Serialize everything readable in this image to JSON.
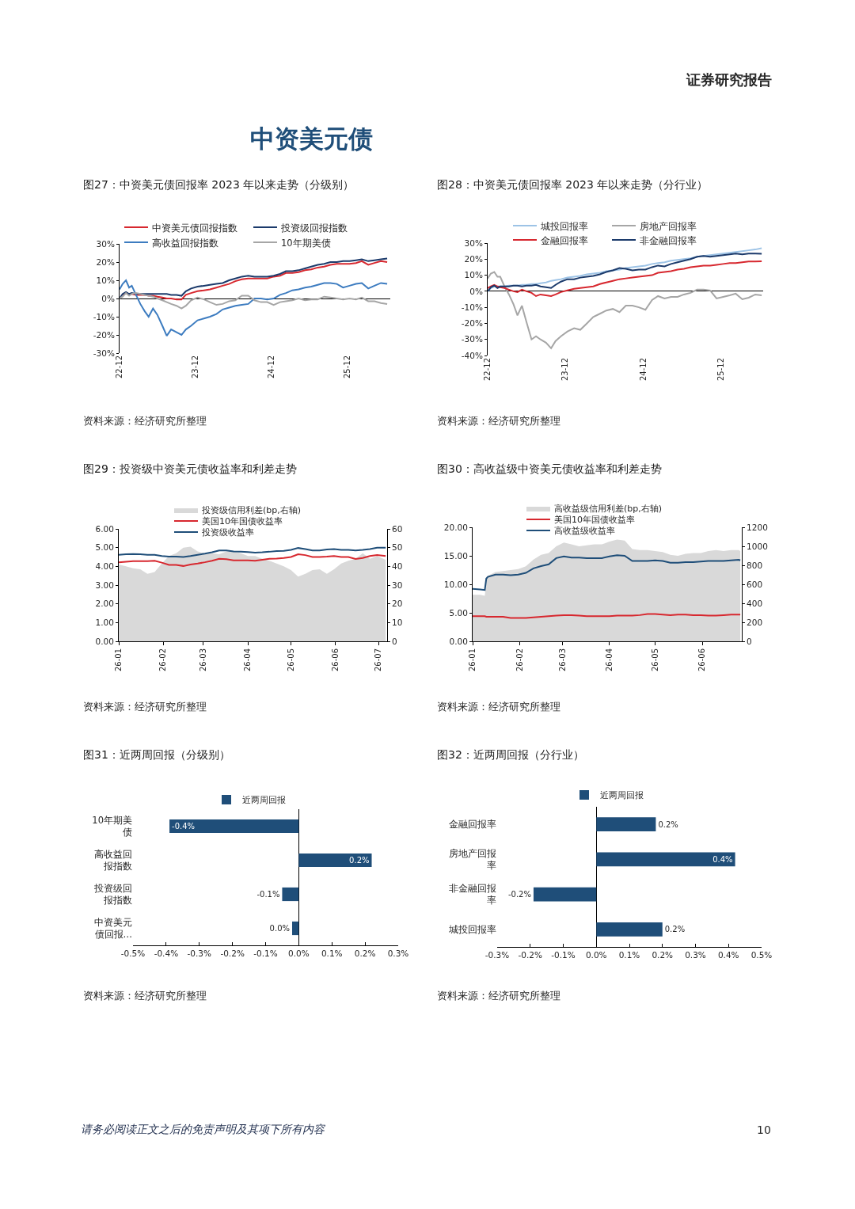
{
  "chart_data": [
    {
      "type": "other",
      "title": "中资美元债",
      "annotations": [
        "证券研究报告",
        "请务必阅读正文之后的免责声明及其项下所有内容",
        "10"
      ]
    },
    {
      "type": "line",
      "title": "图27：中资美元债回报率 2023 年以来走势（分级别）",
      "annotations": [
        "资料来源：经济研究所整理"
      ],
      "legend": "top",
      "xlim": [
        "2022-12-31",
        "2026-07-25"
      ],
      "xticks": [
        {
          "value": "2022-12-31",
          "label": "22-12"
        },
        {
          "value": "2023-12-31",
          "label": "23-12"
        },
        {
          "value": "2024-12-31",
          "label": "24-12"
        },
        {
          "value": "2025-12-31",
          "label": "25-12"
        }
      ],
      "ylim": [
        -30,
        30
      ],
      "yticks": [
        {
          "value": -30,
          "label": "-30%"
        },
        {
          "value": -20,
          "label": "-20%"
        },
        {
          "value": -10,
          "label": "-10%"
        },
        {
          "value": 0,
          "label": "0%"
        },
        {
          "value": 10,
          "label": "10%"
        },
        {
          "value": 20,
          "label": "20%"
        },
        {
          "value": 30,
          "label": "30%"
        }
      ],
      "x": [
        "2022-12-31",
        "2023-01-15",
        "2023-01-31",
        "2023-02-15",
        "2023-02-28",
        "2023-03-20",
        "2023-04-10",
        "2023-05-01",
        "2023-05-20",
        "2023-06-10",
        "2023-07-01",
        "2023-07-25",
        "2023-08-15",
        "2023-09-05",
        "2023-10-01",
        "2023-10-25",
        "2023-11-15",
        "2023-12-10",
        "2024-01-10",
        "2024-02-10",
        "2024-03-10",
        "2024-04-10",
        "2024-05-10",
        "2024-06-10",
        "2024-07-10",
        "2024-08-10",
        "2024-09-10",
        "2024-10-10",
        "2024-11-10",
        "2024-12-10",
        "2025-01-10",
        "2025-02-10",
        "2025-03-10",
        "2025-04-10",
        "2025-05-10",
        "2025-06-10",
        "2025-07-10",
        "2025-08-10",
        "2025-09-10",
        "2025-10-10",
        "2025-11-10",
        "2025-12-10",
        "2026-01-10",
        "2026-02-10",
        "2026-03-10",
        "2026-04-10",
        "2026-05-10",
        "2026-06-10",
        "2026-07-10"
      ],
      "series": [
        {
          "name": "中资美元债回报指数",
          "color": "#d7282f",
          "values": [
            null,
            2,
            3,
            2.5,
            2.5,
            2,
            2,
            2,
            1.5,
            1.5,
            1,
            0.5,
            0,
            0,
            -0.5,
            -0.5,
            2,
            3,
            4,
            4.5,
            5,
            6,
            7,
            8,
            9.5,
            10.5,
            11,
            11,
            11,
            11,
            12,
            12.5,
            14,
            14,
            14.5,
            15.5,
            16,
            17,
            17.5,
            18.5,
            19,
            19,
            19,
            19.5,
            20.5,
            18.5,
            19.5,
            20.5,
            20
          ]
        },
        {
          "name": "投资级回报指数",
          "color": "#1b3a6b",
          "values": [
            0,
            2.5,
            3.5,
            2.5,
            3,
            2.5,
            2.5,
            2.5,
            2.5,
            2.5,
            2.5,
            2.5,
            2.5,
            2,
            2,
            1.5,
            4,
            5.5,
            6.5,
            7,
            7.5,
            8,
            8.5,
            10,
            11,
            12,
            12.5,
            12,
            12,
            12,
            12.5,
            13.5,
            15,
            15,
            15.5,
            16.5,
            17.5,
            18.5,
            19,
            20,
            20,
            20.5,
            20.5,
            21,
            21.5,
            20.5,
            21,
            21.5,
            22
          ]
        },
        {
          "name": "高收益回报指数",
          "color": "#3d7cc0",
          "values": [
            5,
            8,
            10,
            6,
            7,
            2,
            -3,
            -7,
            -10,
            -5.5,
            -9,
            -15,
            -20.5,
            -17,
            -18.5,
            -20,
            -17,
            -15,
            -12,
            -11,
            -10,
            -8.5,
            -6,
            -5,
            -4,
            -3.5,
            -3,
            0,
            0,
            -0.5,
            0,
            2,
            3,
            4.5,
            5,
            6,
            6.5,
            7.5,
            8.5,
            8.5,
            8,
            6,
            7,
            8,
            8.5,
            5.5,
            7,
            8.5,
            8
          ]
        },
        {
          "name": "10年期美债",
          "color": "#a6a6a6",
          "values": [
            0,
            1,
            3,
            1.5,
            2.5,
            3,
            2.5,
            2,
            1.5,
            1,
            0,
            -1,
            -2,
            -3,
            -4,
            -5.5,
            -4,
            -1,
            0.5,
            -0.5,
            -2,
            -3.5,
            -3,
            -1.5,
            -1,
            1.5,
            1.5,
            -1,
            -2,
            -2,
            -3.5,
            -2,
            -1.5,
            -1,
            0,
            -1,
            -0.5,
            -0.5,
            1,
            0.5,
            0,
            -0.5,
            0,
            -0.5,
            0.5,
            -1.5,
            -1.5,
            -2.5,
            -3
          ]
        }
      ]
    },
    {
      "type": "line",
      "title": "图28：中资美元债回报率 2023 年以来走势（分行业）",
      "annotations": [
        "资料来源：经济研究所整理"
      ],
      "legend": "top",
      "xlim": [
        "2022-12-31",
        "2026-07-17"
      ],
      "xticks": [
        {
          "value": "2022-12-31",
          "label": "22-12"
        },
        {
          "value": "2023-12-31",
          "label": "23-12"
        },
        {
          "value": "2024-12-31",
          "label": "24-12"
        },
        {
          "value": "2025-12-31",
          "label": "25-12"
        }
      ],
      "ylim": [
        -40,
        30
      ],
      "yticks": [
        {
          "value": -40,
          "label": "-40%"
        },
        {
          "value": -30,
          "label": "-30%"
        },
        {
          "value": -20,
          "label": "-20%"
        },
        {
          "value": -10,
          "label": "-10%"
        },
        {
          "value": 0,
          "label": "0%"
        },
        {
          "value": 10,
          "label": "10%"
        },
        {
          "value": 20,
          "label": "20%"
        },
        {
          "value": 30,
          "label": "30%"
        }
      ],
      "x": [
        "2022-12-31",
        "2023-01-15",
        "2023-01-31",
        "2023-02-15",
        "2023-02-28",
        "2023-03-20",
        "2023-04-10",
        "2023-05-01",
        "2023-05-20",
        "2023-06-10",
        "2023-07-01",
        "2023-07-25",
        "2023-08-15",
        "2023-09-05",
        "2023-10-01",
        "2023-10-25",
        "2023-11-15",
        "2023-12-10",
        "2024-01-10",
        "2024-02-10",
        "2024-03-10",
        "2024-04-10",
        "2024-05-10",
        "2024-06-10",
        "2024-07-10",
        "2024-08-10",
        "2024-09-10",
        "2024-10-10",
        "2024-11-10",
        "2024-12-10",
        "2025-01-10",
        "2025-02-10",
        "2025-03-10",
        "2025-04-10",
        "2025-05-10",
        "2025-06-10",
        "2025-07-10",
        "2025-08-10",
        "2025-09-10",
        "2025-10-10",
        "2025-11-10",
        "2025-12-10",
        "2026-01-10",
        "2026-02-10",
        "2026-03-10",
        "2026-04-10",
        "2026-05-10",
        "2026-06-10",
        "2026-07-10"
      ],
      "series": [
        {
          "name": "城投回报率",
          "color": "#9dc3e6",
          "values": [
            0,
            2,
            3,
            3,
            3,
            3,
            3.5,
            3.5,
            3.5,
            4,
            4,
            4.5,
            4.5,
            5,
            5.5,
            6.5,
            7,
            7.5,
            8.5,
            9,
            9.5,
            10.5,
            11,
            11.5,
            12.5,
            13,
            13.5,
            14.5,
            15,
            15.5,
            16,
            17,
            17.5,
            18,
            19,
            19.5,
            20,
            20.5,
            21.5,
            22,
            22.5,
            23,
            23.5,
            24,
            24.5,
            25,
            25.5,
            26,
            26.8
          ]
        },
        {
          "name": "房地产回报率",
          "color": "#a6a6a6",
          "values": [
            8,
            11,
            12,
            9,
            9,
            3,
            -2,
            -8,
            -15,
            -9,
            -19,
            -30,
            -28,
            -30,
            -32,
            -35.5,
            -31,
            -28,
            -25,
            -23,
            -24,
            -20,
            -16,
            -14,
            -12,
            -11,
            -13,
            -9,
            -9,
            -10,
            -11.5,
            -5.5,
            -3,
            -4.5,
            -3.5,
            -3.5,
            -2,
            -1,
            1,
            1,
            0.5,
            -4.5,
            -3.5,
            -2.5,
            -1.5,
            -5,
            -4,
            -2,
            -2.5
          ]
        },
        {
          "name": "金融回报率",
          "color": "#d7282f",
          "values": [
            2,
            3,
            4,
            3,
            2.5,
            2,
            1,
            0,
            -0.5,
            1,
            0,
            -1,
            -3,
            -2,
            -2.5,
            -3,
            -2,
            -0.5,
            0.5,
            1.5,
            2,
            2.5,
            3,
            4.5,
            5.5,
            6.5,
            7.5,
            8,
            8.5,
            9,
            9.5,
            10,
            11.5,
            12,
            12.5,
            13.5,
            14,
            15,
            15.5,
            16,
            16,
            16.5,
            17,
            17.5,
            17.5,
            18,
            18.5,
            18.5,
            18.7
          ]
        },
        {
          "name": "非金融回报率",
          "color": "#1b3a6b",
          "values": [
            0,
            2.5,
            3.5,
            2,
            3,
            3,
            3,
            3.5,
            3.5,
            3,
            3.5,
            3.5,
            4,
            3,
            2.5,
            2,
            4,
            6,
            7.5,
            7.5,
            8.5,
            9,
            9.5,
            10.5,
            12,
            13,
            14.5,
            14,
            13,
            13.5,
            13.5,
            15,
            16,
            15.5,
            17,
            18,
            19,
            20,
            21.5,
            22,
            21.5,
            22,
            22.5,
            23,
            23.5,
            23,
            23.5,
            23.5,
            23.3
          ]
        }
      ]
    },
    {
      "type": "line",
      "title": "图29：投资级中资美元债收益率和利差走势",
      "annotations": [
        "资料来源：经济研究所整理"
      ],
      "legend": "top",
      "xlim": [
        "--01-01",
        "--07-07"
      ],
      "xticks": [
        {
          "value": "--01-01",
          "label": "26-01"
        },
        {
          "value": "--02-01",
          "label": "26-02"
        },
        {
          "value": "--03-01",
          "label": "26-03"
        },
        {
          "value": "--04-01",
          "label": "26-04"
        },
        {
          "value": "--05-01",
          "label": "26-05"
        },
        {
          "value": "--06-01",
          "label": "26-06"
        },
        {
          "value": "--07-01",
          "label": "26-07"
        }
      ],
      "ylim": [
        0,
        6
      ],
      "yticks": [
        {
          "value": 0,
          "label": "0.00"
        },
        {
          "value": 1,
          "label": "1.00"
        },
        {
          "value": 2,
          "label": "2.00"
        },
        {
          "value": 3,
          "label": "3.00"
        },
        {
          "value": 4,
          "label": "4.00"
        },
        {
          "value": 5,
          "label": "5.00"
        },
        {
          "value": 6,
          "label": "6.00"
        }
      ],
      "y2lim": [
        0,
        60
      ],
      "y2ticks": [
        0,
        10,
        20,
        30,
        40,
        50,
        60
      ],
      "x": [
        "--01-01",
        "--01-06",
        "--01-11",
        "--01-16",
        "--01-21",
        "--01-26",
        "--01-31",
        "--02-05",
        "--02-10",
        "--02-15",
        "--02-20",
        "--02-25",
        "--03-02",
        "--03-07",
        "--03-12",
        "--03-17",
        "--03-22",
        "--03-27",
        "--04-01",
        "--04-06",
        "--04-11",
        "--04-16",
        "--04-21",
        "--04-26",
        "--05-01",
        "--05-06",
        "--05-11",
        "--05-16",
        "--05-21",
        "--05-26",
        "--05-31",
        "--06-05",
        "--06-10",
        "--06-15",
        "--06-20",
        "--06-25",
        "--06-30",
        "--07-06"
      ],
      "series": [
        {
          "name": "投资级信用利差(bp,右轴)",
          "type": "area",
          "axis": "y2",
          "color": "#d9d9d9",
          "values": [
            41,
            40,
            39,
            38.5,
            36,
            37,
            41.5,
            45.5,
            47,
            50,
            50.5,
            48,
            47,
            47,
            46.5,
            48,
            48,
            47,
            45.5,
            45.5,
            44,
            43,
            41.5,
            40,
            38,
            34.5,
            36,
            38,
            38.5,
            36,
            38.5,
            41.5,
            43,
            44,
            47,
            44,
            45.5,
            43.5
          ]
        },
        {
          "name": "美国10年国债收益率",
          "color": "#d7282f",
          "values": [
            4.21,
            4.25,
            4.28,
            4.28,
            4.28,
            4.3,
            4.2,
            4.08,
            4.08,
            4.02,
            4.1,
            4.15,
            4.22,
            4.3,
            4.4,
            4.38,
            4.32,
            4.32,
            4.32,
            4.3,
            4.35,
            4.4,
            4.42,
            4.45,
            4.5,
            4.65,
            4.6,
            4.5,
            4.5,
            4.52,
            4.55,
            4.5,
            4.5,
            4.4,
            4.45,
            4.55,
            4.6,
            4.55
          ]
        },
        {
          "name": "投资级收益率",
          "color": "#1f4e79",
          "values": [
            4.62,
            4.65,
            4.66,
            4.65,
            4.62,
            4.62,
            4.55,
            4.52,
            4.52,
            4.5,
            4.55,
            4.62,
            4.68,
            4.75,
            4.85,
            4.85,
            4.8,
            4.78,
            4.76,
            4.73,
            4.75,
            4.78,
            4.82,
            4.83,
            4.88,
            4.98,
            4.92,
            4.85,
            4.85,
            4.9,
            4.92,
            4.88,
            4.88,
            4.85,
            4.88,
            4.92,
            5.0,
            5.0
          ]
        }
      ]
    },
    {
      "type": "line",
      "title": "图30：高收益级中资美元债收益率和利差走势",
      "annotations": [
        "资料来源：经济研究所整理"
      ],
      "legend": "top",
      "xlim": [
        "--01-01",
        "--06-27"
      ],
      "xticks": [
        {
          "value": "--01-01",
          "label": "26-01"
        },
        {
          "value": "--02-01",
          "label": "26-02"
        },
        {
          "value": "--03-01",
          "label": "26-03"
        },
        {
          "value": "--04-01",
          "label": "26-04"
        },
        {
          "value": "--05-01",
          "label": "26-05"
        },
        {
          "value": "--06-01",
          "label": "26-06"
        }
      ],
      "ylim": [
        0,
        20
      ],
      "yticks": [
        {
          "value": 0,
          "label": "0.00"
        },
        {
          "value": 5,
          "label": "5.00"
        },
        {
          "value": 10,
          "label": "10.00"
        },
        {
          "value": 15,
          "label": "15.00"
        },
        {
          "value": 20,
          "label": "20.00"
        }
      ],
      "y2lim": [
        0,
        1200
      ],
      "y2ticks": [
        0,
        200,
        400,
        600,
        800,
        1000,
        1200
      ],
      "x": [
        "--01-01",
        "--01-06",
        "--01-09",
        "--01-10",
        "--01-11",
        "--01-16",
        "--01-21",
        "--01-26",
        "--01-31",
        "--02-05",
        "--02-10",
        "--02-15",
        "--02-20",
        "--02-25",
        "--03-02",
        "--03-07",
        "--03-12",
        "--03-17",
        "--03-22",
        "--03-27",
        "--04-01",
        "--04-06",
        "--04-11",
        "--04-16",
        "--04-21",
        "--04-26",
        "--05-01",
        "--05-06",
        "--05-11",
        "--05-16",
        "--05-21",
        "--05-26",
        "--05-31",
        "--06-05",
        "--06-10",
        "--06-15",
        "--06-20",
        "--06-25",
        "--06-26"
      ],
      "series": [
        {
          "name": "高收益级信用利差(bp,右轴)",
          "type": "area",
          "axis": "y2",
          "color": "#d9d9d9",
          "values": [
            490,
            490,
            480,
            650,
            690,
            730,
            740,
            750,
            760,
            790,
            860,
            910,
            930,
            1000,
            1040,
            1020,
            1000,
            1010,
            1020,
            1020,
            1050,
            1070,
            1060,
            970,
            960,
            960,
            950,
            940,
            910,
            900,
            920,
            930,
            930,
            950,
            960,
            950,
            960,
            960,
            950
          ]
        },
        {
          "name": "美国10年国债收益率",
          "color": "#d7282f",
          "values": [
            4.4,
            4.4,
            4.4,
            4.3,
            4.3,
            4.3,
            4.3,
            4.1,
            4.1,
            4.1,
            4.2,
            4.3,
            4.4,
            4.5,
            4.6,
            4.6,
            4.5,
            4.4,
            4.4,
            4.4,
            4.4,
            4.5,
            4.5,
            4.5,
            4.6,
            4.8,
            4.8,
            4.7,
            4.6,
            4.7,
            4.7,
            4.6,
            4.6,
            4.5,
            4.5,
            4.6,
            4.7,
            4.7,
            4.7
          ]
        },
        {
          "name": "高收益级收益率",
          "color": "#1f4e79",
          "values": [
            9.2,
            9.1,
            9.0,
            11.0,
            11.3,
            11.7,
            11.7,
            11.6,
            11.7,
            12.0,
            12.8,
            13.2,
            13.5,
            14.6,
            14.9,
            14.7,
            14.7,
            14.6,
            14.6,
            14.6,
            14.9,
            15.1,
            15.0,
            14.1,
            14.1,
            14.1,
            14.2,
            14.1,
            13.8,
            13.8,
            13.9,
            13.9,
            14.0,
            14.1,
            14.1,
            14.1,
            14.2,
            14.3,
            14.2
          ]
        }
      ]
    },
    {
      "type": "bar",
      "orientation": "horizontal",
      "title": "图31：近两周回报（分级别）",
      "annotations": [
        "资料来源：经济研究所整理"
      ],
      "legend": "top",
      "categories": [
        "10年期美债",
        "高收益回报指数",
        "投资级回报指数",
        "中资美元债回报…"
      ],
      "xlim": [
        -0.5,
        0.3
      ],
      "xticks": [
        {
          "value": -0.5,
          "label": "-0.5%"
        },
        {
          "value": -0.4,
          "label": "-0.4%"
        },
        {
          "value": -0.3,
          "label": "-0.3%"
        },
        {
          "value": -0.2,
          "label": "-0.2%"
        },
        {
          "value": -0.1,
          "label": "-0.1%"
        },
        {
          "value": 0,
          "label": "0.0%"
        },
        {
          "value": 0.1,
          "label": "0.1%"
        },
        {
          "value": 0.2,
          "label": "0.2%"
        },
        {
          "value": 0.3,
          "label": "0.3%"
        }
      ],
      "series": [
        {
          "name": "近两周回报",
          "color": "#1f4e79",
          "values": [
            -0.39,
            0.22,
            -0.05,
            -0.02
          ],
          "value_labels": [
            "-0.4%",
            "0.2%",
            "-0.1%",
            "0.0%"
          ]
        }
      ]
    },
    {
      "type": "bar",
      "orientation": "horizontal",
      "title": "图32：近两周回报（分行业）",
      "annotations": [
        "资料来源：经济研究所整理"
      ],
      "legend": "top",
      "categories": [
        "金融回报率",
        "房地产回报率",
        "非金融回报率",
        "城投回报率"
      ],
      "xlim": [
        -0.3,
        0.5
      ],
      "xticks": [
        {
          "value": -0.3,
          "label": "-0.3%"
        },
        {
          "value": -0.2,
          "label": "-0.2%"
        },
        {
          "value": -0.1,
          "label": "-0.1%"
        },
        {
          "value": 0,
          "label": "0.0%"
        },
        {
          "value": 0.1,
          "label": "0.1%"
        },
        {
          "value": 0.2,
          "label": "0.2%"
        },
        {
          "value": 0.3,
          "label": "0.3%"
        },
        {
          "value": 0.4,
          "label": "0.4%"
        },
        {
          "value": 0.5,
          "label": "0.5%"
        }
      ],
      "series": [
        {
          "name": "近两周回报",
          "color": "#1f4e79",
          "values": [
            0.18,
            0.42,
            -0.19,
            0.2
          ],
          "value_labels": [
            "0.2%",
            "0.4%",
            "-0.2%",
            "0.2%"
          ]
        }
      ]
    }
  ]
}
